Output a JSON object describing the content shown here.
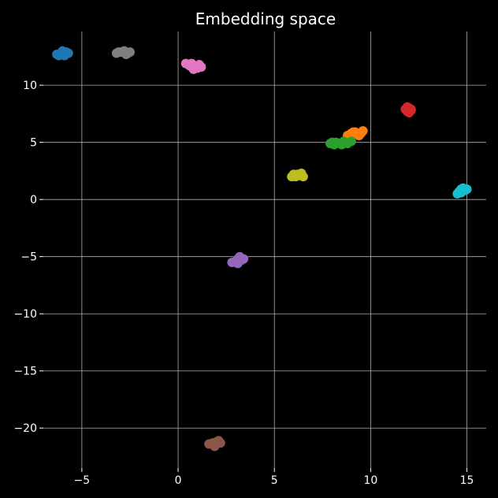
{
  "chart_data": {
    "type": "scatter",
    "title": "Embedding space",
    "xlabel": "",
    "ylabel": "",
    "xlim": [
      -7,
      16
    ],
    "ylim": [
      -23.5,
      14.7
    ],
    "xticks": [
      -5,
      0,
      5,
      10,
      15
    ],
    "xtick_labels": [
      "−5",
      "0",
      "5",
      "10",
      "15"
    ],
    "yticks": [
      -20,
      -15,
      -10,
      -5,
      0,
      5,
      10
    ],
    "ytick_labels": [
      "−20",
      "−15",
      "−10",
      "−5",
      "0",
      "5",
      "10"
    ],
    "grid": true,
    "background": "#000000",
    "series": [
      {
        "color": "#1f77b4",
        "points": [
          [
            -6.3,
            12.7
          ],
          [
            -6.1,
            12.8
          ],
          [
            -6.0,
            13.0
          ],
          [
            -5.9,
            12.6
          ],
          [
            -5.8,
            12.9
          ],
          [
            -5.7,
            12.8
          ],
          [
            -6.2,
            12.6
          ],
          [
            -6.0,
            12.7
          ]
        ]
      },
      {
        "color": "#7f7f7f",
        "points": [
          [
            -3.2,
            12.8
          ],
          [
            -3.0,
            12.9
          ],
          [
            -2.8,
            13.0
          ],
          [
            -2.6,
            12.8
          ],
          [
            -2.5,
            12.9
          ],
          [
            -2.7,
            12.7
          ],
          [
            -3.1,
            12.9
          ]
        ]
      },
      {
        "color": "#e377c2",
        "points": [
          [
            0.4,
            11.9
          ],
          [
            0.6,
            11.7
          ],
          [
            0.7,
            11.9
          ],
          [
            0.9,
            11.6
          ],
          [
            1.0,
            11.5
          ],
          [
            1.1,
            11.8
          ],
          [
            1.2,
            11.6
          ],
          [
            0.8,
            11.4
          ]
        ]
      },
      {
        "color": "#d62728",
        "points": [
          [
            11.8,
            7.9
          ],
          [
            11.9,
            7.7
          ],
          [
            12.0,
            8.0
          ],
          [
            12.1,
            7.8
          ],
          [
            12.0,
            7.6
          ],
          [
            11.9,
            8.1
          ],
          [
            12.1,
            7.9
          ]
        ]
      },
      {
        "color": "#ff7f0e",
        "points": [
          [
            8.8,
            5.6
          ],
          [
            9.0,
            5.8
          ],
          [
            9.1,
            5.9
          ],
          [
            9.3,
            5.7
          ],
          [
            9.4,
            5.6
          ],
          [
            9.5,
            5.8
          ],
          [
            9.6,
            6.0
          ],
          [
            9.2,
            5.9
          ]
        ]
      },
      {
        "color": "#2ca02c",
        "points": [
          [
            7.9,
            4.9
          ],
          [
            8.1,
            4.8
          ],
          [
            8.2,
            5.0
          ],
          [
            8.4,
            4.9
          ],
          [
            8.6,
            5.1
          ],
          [
            8.8,
            4.9
          ],
          [
            9.0,
            5.1
          ],
          [
            8.0,
            5.0
          ],
          [
            8.5,
            4.8
          ]
        ]
      },
      {
        "color": "#bcbd22",
        "points": [
          [
            5.9,
            2.0
          ],
          [
            6.0,
            2.2
          ],
          [
            6.1,
            2.0
          ],
          [
            6.3,
            2.1
          ],
          [
            6.4,
            2.3
          ],
          [
            6.5,
            2.0
          ],
          [
            6.2,
            2.2
          ]
        ]
      },
      {
        "color": "#17becf",
        "points": [
          [
            14.5,
            0.5
          ],
          [
            14.6,
            0.7
          ],
          [
            14.7,
            0.9
          ],
          [
            14.8,
            1.0
          ],
          [
            14.9,
            0.8
          ],
          [
            15.0,
            0.9
          ],
          [
            14.7,
            0.6
          ]
        ]
      },
      {
        "color": "#9467bd",
        "points": [
          [
            2.8,
            -5.5
          ],
          [
            3.0,
            -5.4
          ],
          [
            3.1,
            -5.2
          ],
          [
            3.2,
            -5.0
          ],
          [
            3.3,
            -5.3
          ],
          [
            3.4,
            -5.2
          ],
          [
            3.1,
            -5.6
          ]
        ]
      },
      {
        "color": "#8c564b",
        "points": [
          [
            1.6,
            -21.4
          ],
          [
            1.8,
            -21.3
          ],
          [
            1.9,
            -21.6
          ],
          [
            2.0,
            -21.2
          ],
          [
            2.1,
            -21.1
          ],
          [
            2.2,
            -21.3
          ],
          [
            1.9,
            -21.5
          ]
        ]
      }
    ]
  }
}
